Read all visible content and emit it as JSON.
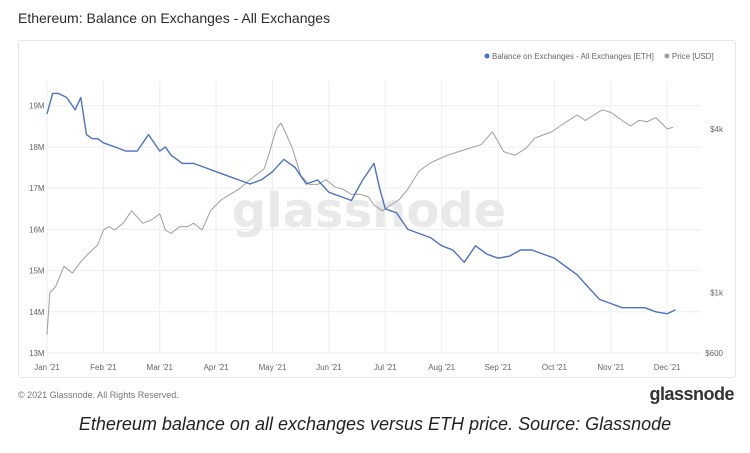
{
  "header": {
    "title": "Ethereum: Balance on Exchanges - All Exchanges"
  },
  "footer": {
    "copyright": "© 2021 Glassnode. All Rights Reserved.",
    "brand": "glassnode",
    "caption": "Ethereum balance on all exchanges versus ETH price. Source: Glassnode"
  },
  "watermark": "glassnode",
  "colors": {
    "balance": "#4a72c8",
    "price": "#9e9e9e",
    "grid": "#eeeeee"
  },
  "chart_data": {
    "type": "line",
    "title": "Ethereum: Balance on Exchanges - All Exchanges",
    "x_ticks": [
      "Jan '21",
      "Feb '21",
      "Mar '21",
      "Apr '21",
      "May '21",
      "Jun '21",
      "Jul '21",
      "Aug '21",
      "Sep '21",
      "Oct '21",
      "Nov '21",
      "Dec '21"
    ],
    "xlim": [
      0,
      11.6
    ],
    "left_axis": {
      "ticks": [
        "19M",
        "18M",
        "17M",
        "16M",
        "15M",
        "14M",
        "13M"
      ],
      "tick_values": [
        19,
        18,
        17,
        16,
        15,
        14,
        13
      ],
      "ylim": [
        13,
        19.6
      ]
    },
    "right_axis": {
      "scale": "log",
      "ticks": [
        "$4k",
        "$1k",
        "$600"
      ],
      "tick_values": [
        4000,
        1000,
        600
      ],
      "ylim": [
        600,
        6000
      ]
    },
    "legend_position": "top-right",
    "grid": true,
    "series": [
      {
        "name": "Balance on Exchanges - All Exchanges [ETH]",
        "axis": "left",
        "x": [
          0,
          0.1,
          0.2,
          0.35,
          0.5,
          0.6,
          0.7,
          0.8,
          0.9,
          1.0,
          1.2,
          1.4,
          1.6,
          1.8,
          2.0,
          2.1,
          2.2,
          2.4,
          2.6,
          2.8,
          3.0,
          3.2,
          3.4,
          3.6,
          3.8,
          4.0,
          4.2,
          4.3,
          4.4,
          4.5,
          4.6,
          4.8,
          5.0,
          5.2,
          5.4,
          5.6,
          5.8,
          5.9,
          6.0,
          6.2,
          6.4,
          6.6,
          6.8,
          7.0,
          7.2,
          7.4,
          7.6,
          7.8,
          8.0,
          8.2,
          8.4,
          8.6,
          8.8,
          9.0,
          9.2,
          9.4,
          9.6,
          9.8,
          10.0,
          10.2,
          10.4,
          10.6,
          10.8,
          11.0,
          11.15
        ],
        "values": [
          18.8,
          19.3,
          19.3,
          19.2,
          18.9,
          19.2,
          18.3,
          18.2,
          18.2,
          18.1,
          18.0,
          17.9,
          17.9,
          18.3,
          17.9,
          18.0,
          17.8,
          17.6,
          17.6,
          17.5,
          17.4,
          17.3,
          17.2,
          17.1,
          17.2,
          17.4,
          17.7,
          17.6,
          17.5,
          17.3,
          17.1,
          17.2,
          16.9,
          16.8,
          16.7,
          17.2,
          17.6,
          17.0,
          16.5,
          16.4,
          16.0,
          15.9,
          15.8,
          15.6,
          15.5,
          15.2,
          15.6,
          15.4,
          15.3,
          15.35,
          15.5,
          15.5,
          15.4,
          15.3,
          15.1,
          14.9,
          14.6,
          14.3,
          14.2,
          14.1,
          14.1,
          14.1,
          14.0,
          13.95,
          14.05
        ]
      },
      {
        "name": "Price [USD]",
        "axis": "right",
        "x": [
          0,
          0.05,
          0.15,
          0.3,
          0.45,
          0.6,
          0.75,
          0.9,
          1.0,
          1.1,
          1.2,
          1.35,
          1.5,
          1.7,
          1.85,
          2.0,
          2.1,
          2.2,
          2.35,
          2.5,
          2.6,
          2.75,
          2.9,
          3.0,
          3.1,
          3.25,
          3.4,
          3.55,
          3.7,
          3.85,
          3.95,
          4.05,
          4.1,
          4.15,
          4.25,
          4.35,
          4.5,
          4.65,
          4.8,
          4.95,
          5.1,
          5.25,
          5.4,
          5.55,
          5.7,
          5.8,
          5.95,
          6.1,
          6.25,
          6.4,
          6.6,
          6.8,
          6.95,
          7.1,
          7.3,
          7.5,
          7.7,
          7.9,
          8.1,
          8.3,
          8.5,
          8.65,
          8.8,
          8.95,
          9.1,
          9.25,
          9.4,
          9.55,
          9.7,
          9.85,
          10.0,
          10.1,
          10.2,
          10.35,
          10.5,
          10.65,
          10.8,
          10.9,
          11.0,
          11.1
        ],
        "values": [
          700,
          1000,
          1050,
          1250,
          1180,
          1300,
          1400,
          1500,
          1700,
          1750,
          1700,
          1800,
          2000,
          1800,
          1850,
          1950,
          1700,
          1650,
          1750,
          1750,
          1800,
          1700,
          2000,
          2100,
          2200,
          2300,
          2400,
          2550,
          2700,
          2850,
          3300,
          3900,
          4100,
          4200,
          3800,
          3400,
          2700,
          2500,
          2500,
          2600,
          2450,
          2400,
          2300,
          2300,
          2250,
          2100,
          2000,
          2100,
          2200,
          2400,
          2800,
          3000,
          3100,
          3200,
          3300,
          3400,
          3500,
          3900,
          3300,
          3200,
          3400,
          3700,
          3800,
          3900,
          4100,
          4300,
          4500,
          4300,
          4500,
          4700,
          4600,
          4450,
          4300,
          4100,
          4300,
          4250,
          4400,
          4200,
          4000,
          4050
        ]
      }
    ]
  }
}
